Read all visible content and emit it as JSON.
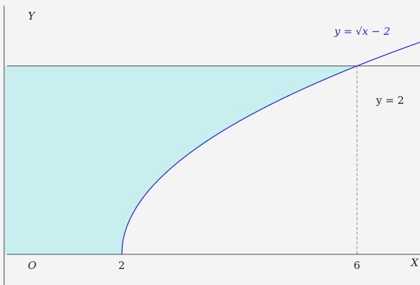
{
  "figure": {
    "background": "#f4f4f4",
    "region_fill": "#c9eef0",
    "axis_color": "#444444",
    "curve_color": "#1f2fd8",
    "dash_color": "#777777",
    "x_axis_label": "X",
    "y_axis_label": "Y",
    "origin_label": "O",
    "x_ticks": [
      "2",
      "6"
    ],
    "curve_label": "y = √x − 2",
    "line_label": "y = 2"
  },
  "chart_data": {
    "type": "area",
    "x_range": [
      -0.07,
      7.07
    ],
    "y_range": [
      0,
      2.7
    ],
    "curve": {
      "expression": "y = sqrt(x - 2)",
      "x_start": 2
    },
    "horizontal_line": 2,
    "shaded_region": "between x=0 and x = y^2 + 2, for 0 <= y <= 2",
    "dashed_drop_x": 6,
    "intersection": [
      6,
      2
    ]
  }
}
